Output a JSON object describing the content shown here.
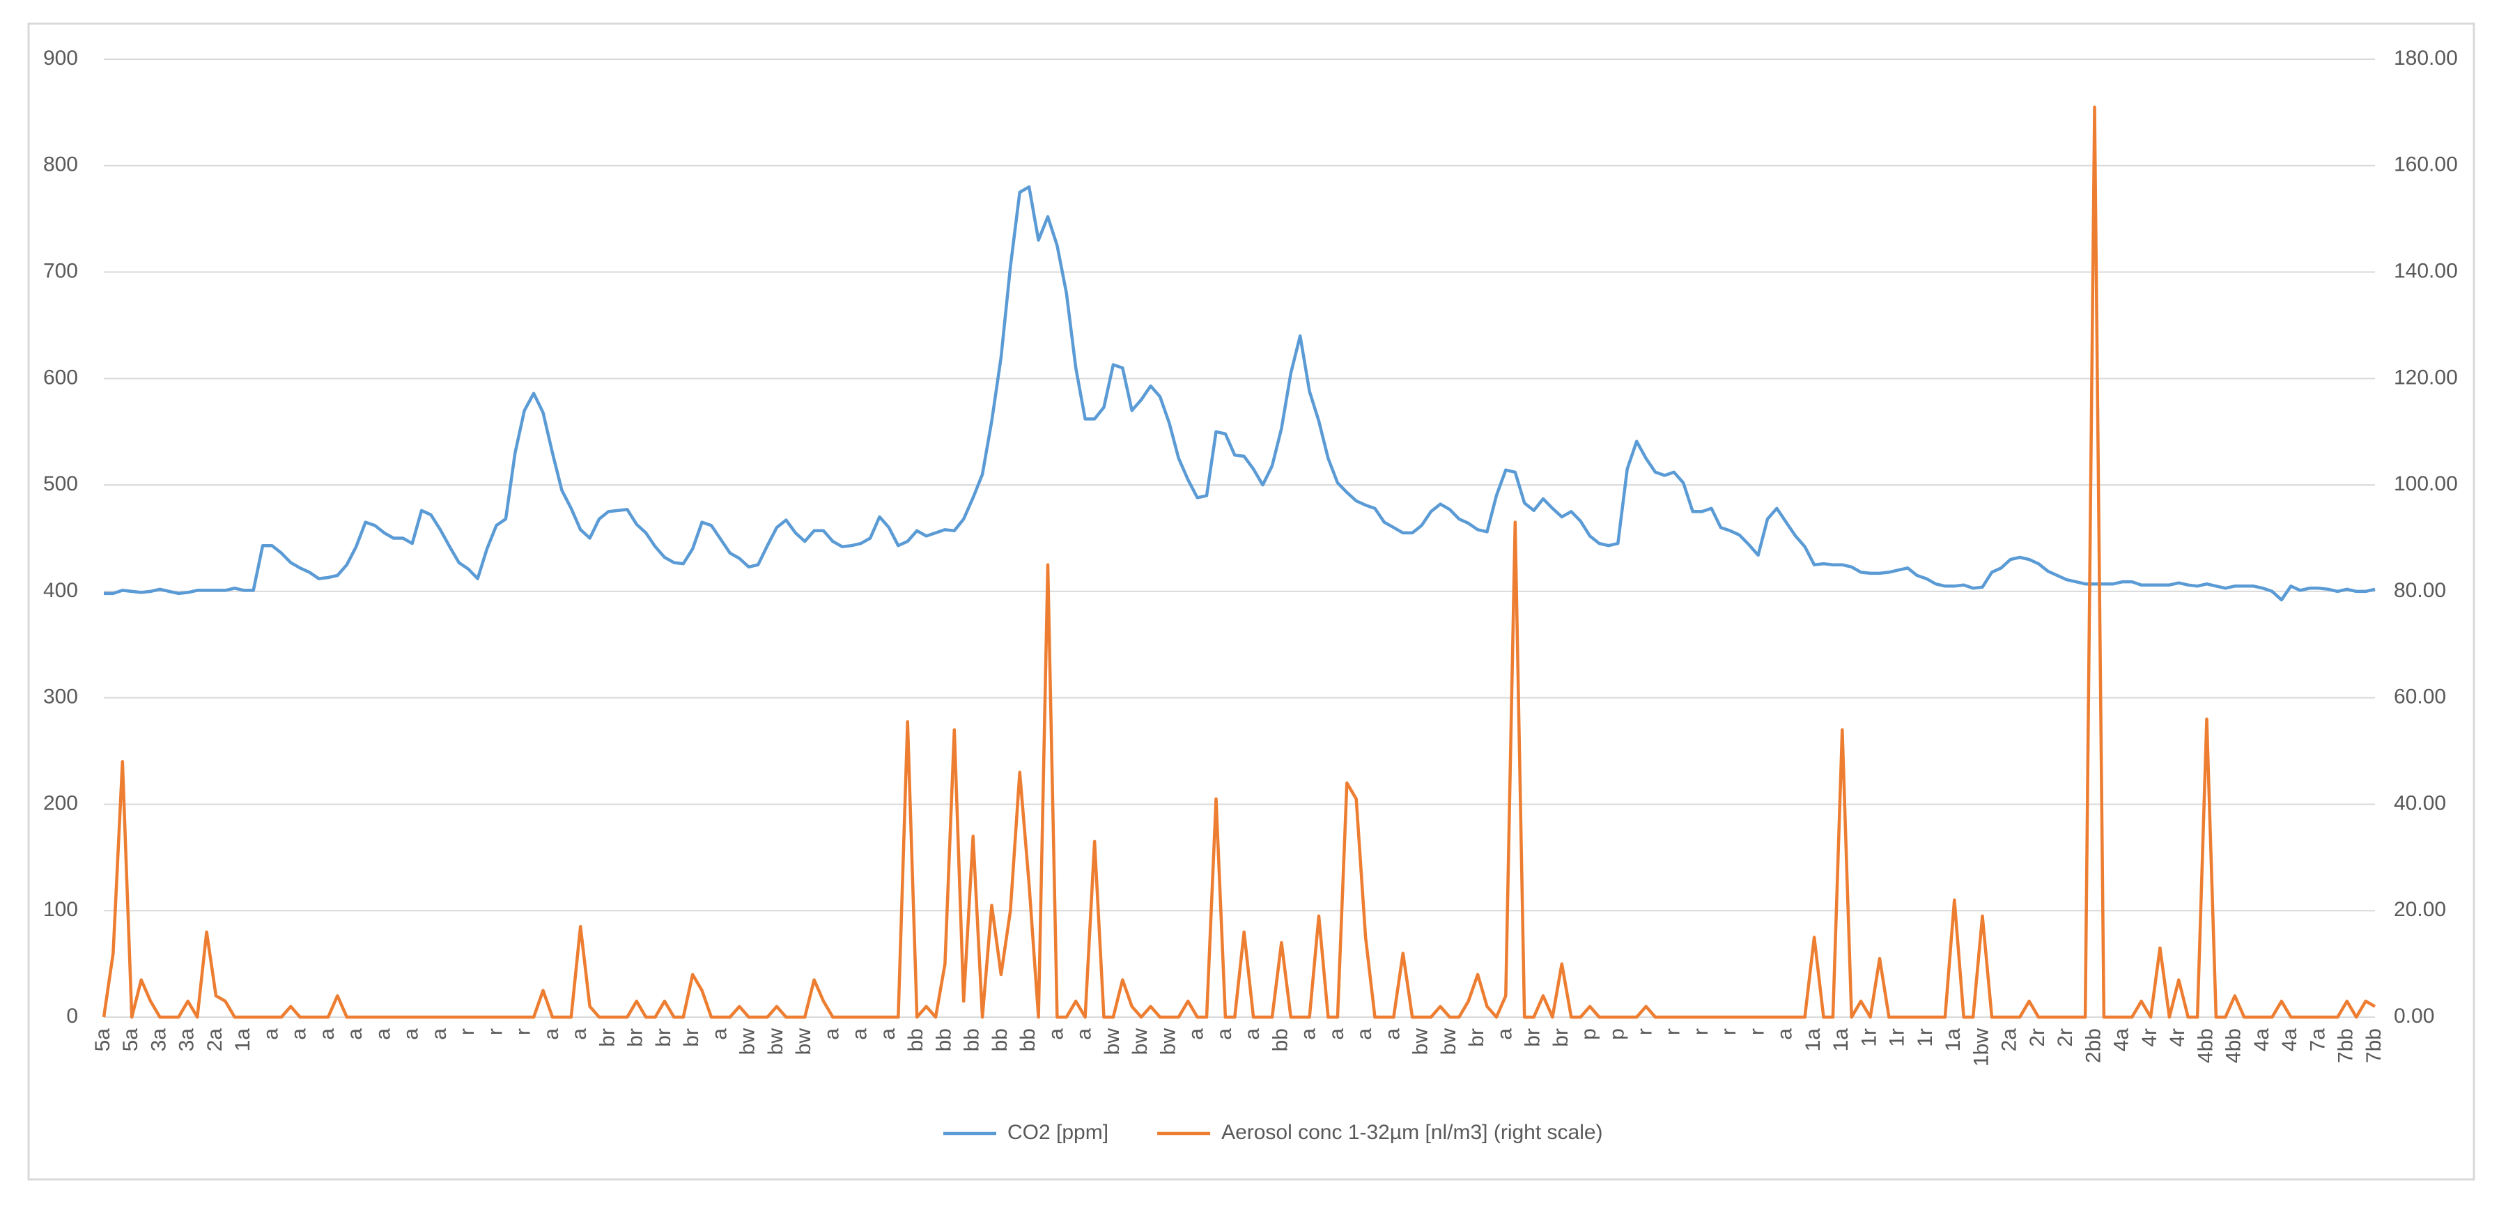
{
  "chart_data": {
    "type": "line",
    "categories": [
      "5a",
      null,
      null,
      "5a",
      null,
      null,
      "3a",
      null,
      null,
      "3a",
      null,
      null,
      "2a",
      null,
      null,
      "1a",
      null,
      null,
      "a",
      null,
      null,
      "a",
      null,
      null,
      "a",
      null,
      null,
      "a",
      null,
      null,
      "a",
      null,
      null,
      "a",
      null,
      null,
      "a",
      null,
      null,
      "r",
      null,
      null,
      "r",
      null,
      null,
      "r",
      null,
      null,
      "a",
      null,
      null,
      "a",
      null,
      null,
      "br",
      null,
      null,
      "br",
      null,
      null,
      "br",
      null,
      null,
      "br",
      null,
      null,
      "a",
      null,
      null,
      "bw",
      null,
      null,
      "bw",
      null,
      null,
      "bw",
      null,
      null,
      "a",
      null,
      null,
      "a",
      null,
      null,
      "a",
      null,
      null,
      "bb",
      null,
      null,
      "bb",
      null,
      null,
      "bb",
      null,
      null,
      "bb",
      null,
      null,
      "bb",
      null,
      null,
      "a",
      null,
      null,
      "a",
      null,
      null,
      "bw",
      null,
      null,
      "bw",
      null,
      null,
      "bw",
      null,
      null,
      "a",
      null,
      null,
      "a",
      null,
      null,
      "a",
      null,
      null,
      "bb",
      null,
      null,
      "a",
      null,
      null,
      "a",
      null,
      null,
      "a",
      null,
      null,
      "a",
      null,
      null,
      "bw",
      null,
      null,
      "bw",
      null,
      null,
      "br",
      null,
      null,
      "a",
      null,
      null,
      "br",
      null,
      null,
      "br",
      null,
      null,
      "p",
      null,
      null,
      "p",
      null,
      null,
      "r",
      null,
      null,
      "r",
      null,
      null,
      "r",
      null,
      null,
      "r",
      null,
      null,
      "r",
      null,
      null,
      "a",
      null,
      null,
      "1a",
      null,
      null,
      "1a",
      null,
      null,
      "1r",
      null,
      null,
      "1r",
      null,
      null,
      "1r",
      null,
      null,
      "1a",
      null,
      null,
      "1bw",
      null,
      null,
      "2a",
      null,
      null,
      "2r",
      null,
      null,
      "2r",
      null,
      null,
      "2bb",
      null,
      null,
      "4a",
      null,
      null,
      "4r",
      null,
      null,
      "4r",
      null,
      null,
      "4bb",
      null,
      null,
      "4bb",
      null,
      null,
      "4a",
      null,
      null,
      "4a",
      null,
      null,
      "7a",
      null,
      null,
      "7bb",
      null,
      null,
      "7bb"
    ],
    "series": [
      {
        "name": "CO2 [ppm]",
        "color": "#5b9bd5",
        "values": [
          398,
          398,
          401,
          400,
          399,
          400,
          402,
          400,
          398,
          399,
          401,
          401,
          401,
          401,
          403,
          401,
          401,
          443,
          443,
          436,
          427,
          422,
          418,
          412,
          413,
          415,
          425,
          442,
          465,
          462,
          455,
          450,
          450,
          445,
          476,
          472,
          458,
          442,
          427,
          421,
          412,
          440,
          462,
          468,
          530,
          570,
          586,
          568,
          530,
          495,
          478,
          458,
          450,
          468,
          475,
          476,
          477,
          463,
          455,
          442,
          432,
          427,
          426,
          440,
          465,
          462,
          449,
          436,
          431,
          423,
          425,
          443,
          460,
          467,
          455,
          447,
          457,
          457,
          447,
          442,
          443,
          445,
          450,
          470,
          460,
          443,
          447,
          457,
          452,
          455,
          458,
          457,
          468,
          488,
          510,
          560,
          620,
          705,
          775,
          780,
          730,
          752,
          725,
          680,
          610,
          562,
          562,
          573,
          613,
          610,
          570,
          580,
          593,
          583,
          558,
          525,
          505,
          488,
          490,
          550,
          548,
          528,
          527,
          515,
          500,
          518,
          553,
          605,
          640,
          588,
          560,
          525,
          502,
          493,
          485,
          481,
          478,
          465,
          460,
          455,
          455,
          462,
          475,
          482,
          477,
          468,
          464,
          458,
          456,
          490,
          514,
          512,
          483,
          476,
          487,
          478,
          470,
          475,
          466,
          452,
          445,
          443,
          445,
          515,
          541,
          525,
          512,
          509,
          512,
          502,
          475,
          475,
          478,
          460,
          457,
          453,
          444,
          434,
          468,
          478,
          465,
          452,
          442,
          425,
          426,
          425,
          425,
          423,
          418,
          417,
          417,
          418,
          420,
          422,
          415,
          412,
          407,
          405,
          405,
          406,
          403,
          404,
          418,
          422,
          430,
          432,
          430,
          426,
          419,
          415,
          411,
          409,
          407,
          407,
          407,
          407,
          409,
          409,
          406,
          406,
          406,
          406,
          408,
          406,
          405,
          407,
          405,
          403,
          405,
          405,
          405,
          403,
          400,
          392,
          405,
          401,
          403,
          403,
          402,
          400,
          402,
          400,
          400,
          402
        ]
      },
      {
        "name": "Aerosol conc 1-32µm [nl/m3] (right scale)",
        "color": "#ed7d31",
        "axis": "y2",
        "values": [
          0,
          12,
          48,
          0,
          7,
          3,
          0,
          0,
          0,
          3,
          0,
          16,
          4,
          3,
          0,
          0,
          0,
          0,
          0,
          0,
          2,
          0,
          0,
          0,
          0,
          4,
          0,
          0,
          0,
          0,
          0,
          0,
          0,
          0,
          0,
          0,
          0,
          0,
          0,
          0,
          0,
          0,
          0,
          0,
          0,
          0,
          0,
          5,
          0,
          0,
          0,
          17,
          2,
          0,
          0,
          0,
          0,
          3,
          0,
          0,
          3,
          0,
          0,
          8,
          5,
          0,
          0,
          0,
          2,
          0,
          0,
          0,
          2,
          0,
          0,
          0,
          7,
          3,
          0,
          0,
          0,
          0,
          0,
          0,
          0,
          0,
          55.5,
          0,
          2,
          0,
          10,
          54,
          3,
          34,
          0,
          21,
          8,
          20,
          46,
          25,
          0,
          85,
          0,
          0,
          3,
          0,
          33,
          0,
          0,
          7,
          2,
          0,
          2,
          0,
          0,
          0,
          3,
          0,
          0,
          41,
          0,
          0,
          16,
          0,
          0,
          0,
          14,
          0,
          0,
          0,
          19,
          0,
          0,
          44,
          41,
          15,
          0,
          0,
          0,
          12,
          0,
          0,
          0,
          2,
          0,
          0,
          3,
          8,
          2,
          0,
          4,
          93,
          0,
          0,
          4,
          0,
          10,
          0,
          0,
          2,
          0,
          0,
          0,
          0,
          0,
          2,
          0,
          0,
          0,
          0,
          0,
          0,
          0,
          0,
          0,
          0,
          0,
          0,
          0,
          0,
          0,
          0,
          0,
          15,
          0,
          0,
          54,
          0,
          3,
          0,
          11,
          0,
          0,
          0,
          0,
          0,
          0,
          0,
          22,
          0,
          0,
          19,
          0,
          0,
          0,
          0,
          3,
          0,
          0,
          0,
          0,
          0,
          0,
          171,
          0,
          0,
          0,
          0,
          3,
          0,
          13,
          0,
          7,
          0,
          0,
          56,
          0,
          0,
          4,
          0,
          0,
          0,
          0,
          3,
          0,
          0,
          0,
          0,
          0,
          0,
          3,
          0,
          3,
          2
        ]
      }
    ],
    "ylim": [
      0,
      900
    ],
    "yticks": [
      0,
      100,
      200,
      300,
      400,
      500,
      600,
      700,
      800,
      900
    ],
    "y2lim": [
      0,
      180
    ],
    "y2ticks": [
      {
        "value": 0,
        "label": "0.00"
      },
      {
        "value": 20,
        "label": "20.00"
      },
      {
        "value": 40,
        "label": "40.00"
      },
      {
        "value": 60,
        "label": "60.00"
      },
      {
        "value": 80,
        "label": "80.00"
      },
      {
        "value": 100,
        "label": "100.00"
      },
      {
        "value": 120,
        "label": "120.00"
      },
      {
        "value": 140,
        "label": "140.00"
      },
      {
        "value": 160,
        "label": "160.00"
      },
      {
        "value": 180,
        "label": "180.00"
      }
    ],
    "grid": true,
    "legend": "bottom"
  }
}
